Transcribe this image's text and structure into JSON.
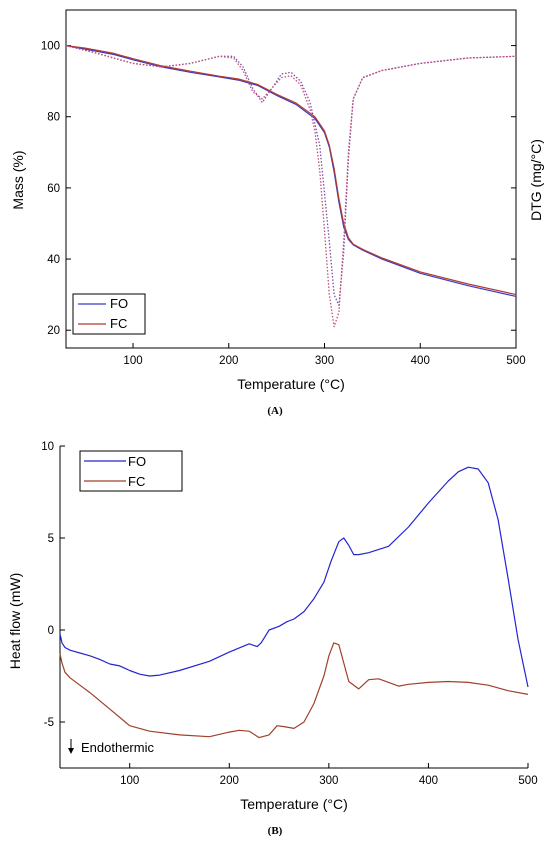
{
  "chart_data": [
    {
      "type": "line",
      "panel_label": "(A)",
      "xlabel": "Temperature (°C)",
      "ylabel": "Mass (%)",
      "y2label": "DTG (mg/°C)",
      "xlim": [
        30,
        500
      ],
      "ylim": [
        15,
        110
      ],
      "xticks": [
        100,
        200,
        300,
        400,
        500
      ],
      "yticks": [
        20,
        40,
        60,
        80,
        100
      ],
      "legend_position": "bottom-left",
      "series": [
        {
          "name": "FO",
          "color": "#3b3bc8",
          "style": "solid",
          "x": [
            30,
            50,
            80,
            100,
            130,
            160,
            190,
            210,
            230,
            250,
            270,
            290,
            300,
            305,
            310,
            315,
            320,
            325,
            330,
            340,
            360,
            400,
            450,
            500
          ],
          "values": [
            100,
            99,
            97.5,
            96,
            94,
            92.5,
            91.2,
            90.3,
            88.8,
            86,
            83.5,
            79.5,
            75.5,
            71.5,
            64.5,
            56,
            49,
            45.5,
            44,
            42.5,
            40,
            36,
            32.5,
            29.5
          ]
        },
        {
          "name": "FC",
          "color": "#b03a2e",
          "style": "solid",
          "x": [
            30,
            50,
            80,
            100,
            130,
            160,
            190,
            210,
            230,
            250,
            270,
            290,
            300,
            305,
            310,
            315,
            320,
            325,
            330,
            340,
            360,
            400,
            450,
            500
          ],
          "values": [
            100,
            99.3,
            97.8,
            96.3,
            94.3,
            92.8,
            91.4,
            90.6,
            89.1,
            86.3,
            83.9,
            80,
            76,
            72,
            65.5,
            57,
            50,
            46,
            44.2,
            42.7,
            40.3,
            36.4,
            33,
            30
          ]
        },
        {
          "name": "FO DTG",
          "color": "#7a4fb0",
          "style": "dotted",
          "x": [
            30,
            60,
            100,
            130,
            160,
            190,
            205,
            215,
            225,
            235,
            245,
            255,
            265,
            275,
            285,
            295,
            305,
            310,
            315,
            320,
            325,
            330,
            340,
            360,
            400,
            450,
            500
          ],
          "values": [
            100,
            98,
            95,
            94,
            95,
            97,
            97,
            94,
            88,
            84,
            88,
            92,
            92.5,
            90,
            84,
            72,
            45,
            30,
            27,
            42,
            68,
            85,
            91,
            93,
            95,
            96.5,
            97
          ]
        },
        {
          "name": "FC DTG",
          "color": "#c0507a",
          "style": "dotted",
          "x": [
            30,
            60,
            100,
            130,
            160,
            190,
            205,
            215,
            225,
            235,
            245,
            255,
            265,
            275,
            285,
            290,
            295,
            300,
            305,
            310,
            315,
            320,
            325,
            330,
            340,
            360,
            400,
            450,
            500
          ],
          "values": [
            100,
            98,
            95,
            94,
            95,
            97,
            96.5,
            93,
            87,
            85,
            88,
            91,
            91.5,
            89,
            82,
            76,
            65,
            48,
            30,
            21,
            25,
            45,
            70,
            85,
            91,
            93,
            95,
            96.5,
            97
          ]
        }
      ]
    },
    {
      "type": "line",
      "panel_label": "(B)",
      "xlabel": "Temperature (°C)",
      "ylabel": "Heat flow (mW)",
      "annotation": "Endothermic",
      "xlim": [
        30,
        500
      ],
      "ylim": [
        -7.5,
        10
      ],
      "xticks": [
        100,
        200,
        300,
        400,
        500
      ],
      "yticks": [
        -5,
        0,
        5,
        10
      ],
      "legend_position": "top-left",
      "series": [
        {
          "name": "FO",
          "color": "#2525d0",
          "style": "solid",
          "x": [
            30,
            32,
            35,
            40,
            50,
            60,
            70,
            80,
            90,
            100,
            110,
            120,
            130,
            150,
            180,
            200,
            220,
            228,
            232,
            240,
            250,
            258,
            265,
            275,
            285,
            295,
            302,
            310,
            315,
            320,
            325,
            330,
            340,
            360,
            380,
            400,
            420,
            430,
            440,
            450,
            460,
            470,
            480,
            490,
            500
          ],
          "values": [
            -0.2,
            -0.7,
            -0.95,
            -1.1,
            -1.25,
            -1.4,
            -1.6,
            -1.85,
            -1.95,
            -2.2,
            -2.4,
            -2.5,
            -2.45,
            -2.2,
            -1.7,
            -1.2,
            -0.75,
            -0.9,
            -0.7,
            0.0,
            0.2,
            0.45,
            0.6,
            1.0,
            1.7,
            2.6,
            3.7,
            4.8,
            5.0,
            4.6,
            4.1,
            4.1,
            4.2,
            4.55,
            5.6,
            6.9,
            8.1,
            8.6,
            8.85,
            8.75,
            8.0,
            6.0,
            2.8,
            -0.5,
            -3.1
          ]
        },
        {
          "name": "FC",
          "color": "#a0402a",
          "style": "solid",
          "x": [
            30,
            32,
            35,
            40,
            50,
            60,
            80,
            100,
            120,
            150,
            180,
            200,
            210,
            220,
            230,
            240,
            248,
            255,
            265,
            275,
            285,
            295,
            300,
            305,
            310,
            315,
            320,
            330,
            340,
            350,
            360,
            370,
            380,
            400,
            420,
            440,
            460,
            480,
            500
          ],
          "values": [
            -1.3,
            -1.8,
            -2.3,
            -2.6,
            -3.0,
            -3.4,
            -4.3,
            -5.2,
            -5.5,
            -5.7,
            -5.8,
            -5.55,
            -5.45,
            -5.5,
            -5.85,
            -5.7,
            -5.2,
            -5.25,
            -5.35,
            -5.0,
            -4.0,
            -2.5,
            -1.4,
            -0.7,
            -0.8,
            -1.8,
            -2.8,
            -3.2,
            -2.7,
            -2.65,
            -2.85,
            -3.05,
            -2.95,
            -2.85,
            -2.8,
            -2.85,
            -3.0,
            -3.3,
            -3.5
          ]
        }
      ]
    }
  ]
}
